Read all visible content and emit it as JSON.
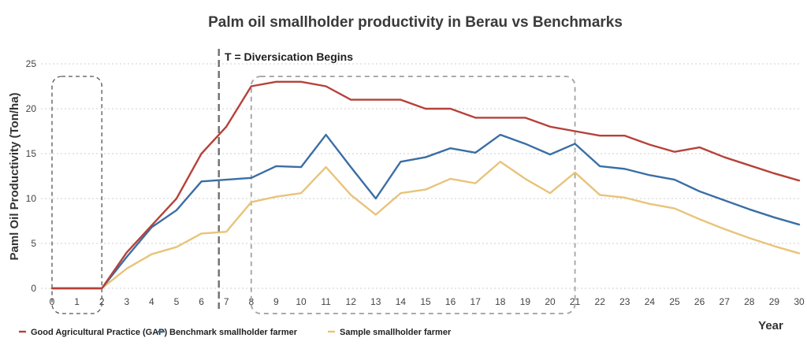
{
  "chart_data": {
    "type": "line",
    "title": "Palm oil smallholder productivity in Berau vs Benchmarks",
    "xlabel": "Year",
    "ylabel": "Paml Oil Productivity (Ton/ha)",
    "xlim": [
      0,
      30
    ],
    "ylim": [
      0,
      25
    ],
    "yticks": [
      0,
      5,
      10,
      15,
      20,
      25
    ],
    "xticks": [
      0,
      1,
      2,
      3,
      4,
      5,
      6,
      7,
      8,
      9,
      10,
      11,
      12,
      13,
      14,
      15,
      16,
      17,
      18,
      19,
      20,
      21,
      22,
      23,
      24,
      25,
      26,
      27,
      28,
      29,
      30
    ],
    "grid": true,
    "legend_position": "bottom-left",
    "x": [
      0,
      1,
      2,
      3,
      4,
      5,
      6,
      7,
      8,
      9,
      10,
      11,
      12,
      13,
      14,
      15,
      16,
      17,
      18,
      19,
      20,
      21,
      22,
      23,
      24,
      25,
      26,
      27,
      28,
      29,
      30
    ],
    "series": [
      {
        "name": "Good Agricultural Practice (GAP)",
        "color": "#b5423a",
        "values": [
          0,
          0,
          0,
          4,
          7,
          10,
          15,
          18,
          22.5,
          23,
          23,
          22.5,
          21,
          21,
          21,
          20,
          20,
          19,
          19,
          19,
          18,
          17.5,
          17,
          17,
          16,
          15.2,
          15.7,
          14.6,
          13.7,
          12.8,
          12
        ]
      },
      {
        "name": "Benchmark smallholder farmer",
        "color": "#3a6ea5",
        "values": [
          0,
          0,
          0,
          3.5,
          6.8,
          8.7,
          11.9,
          12.1,
          12.3,
          13.6,
          13.5,
          17.1,
          13.5,
          10,
          14.1,
          14.6,
          15.6,
          15.1,
          17.1,
          16.1,
          14.9,
          16.1,
          13.6,
          13.3,
          12.6,
          12.1,
          10.8,
          9.8,
          8.8,
          7.9,
          7.1
        ]
      },
      {
        "name": "Sample smallholder farmer",
        "color": "#e8c47a",
        "values": [
          0,
          0,
          0,
          2.2,
          3.8,
          4.6,
          6.1,
          6.3,
          9.6,
          10.2,
          10.6,
          13.5,
          10.4,
          8.2,
          10.6,
          11,
          12.2,
          11.7,
          14.1,
          12.2,
          10.6,
          12.9,
          10.4,
          10.1,
          9.4,
          8.9,
          7.7,
          6.6,
          5.6,
          4.7,
          3.9
        ]
      }
    ],
    "annotations": [
      {
        "type": "vertical-dashed-line",
        "x": 6.7,
        "label": "T = Diversication Begins"
      },
      {
        "type": "dashed-box",
        "x_range": [
          0,
          2
        ],
        "label": ""
      },
      {
        "type": "dashed-box",
        "x_range": [
          8,
          21
        ],
        "label": ""
      }
    ]
  }
}
